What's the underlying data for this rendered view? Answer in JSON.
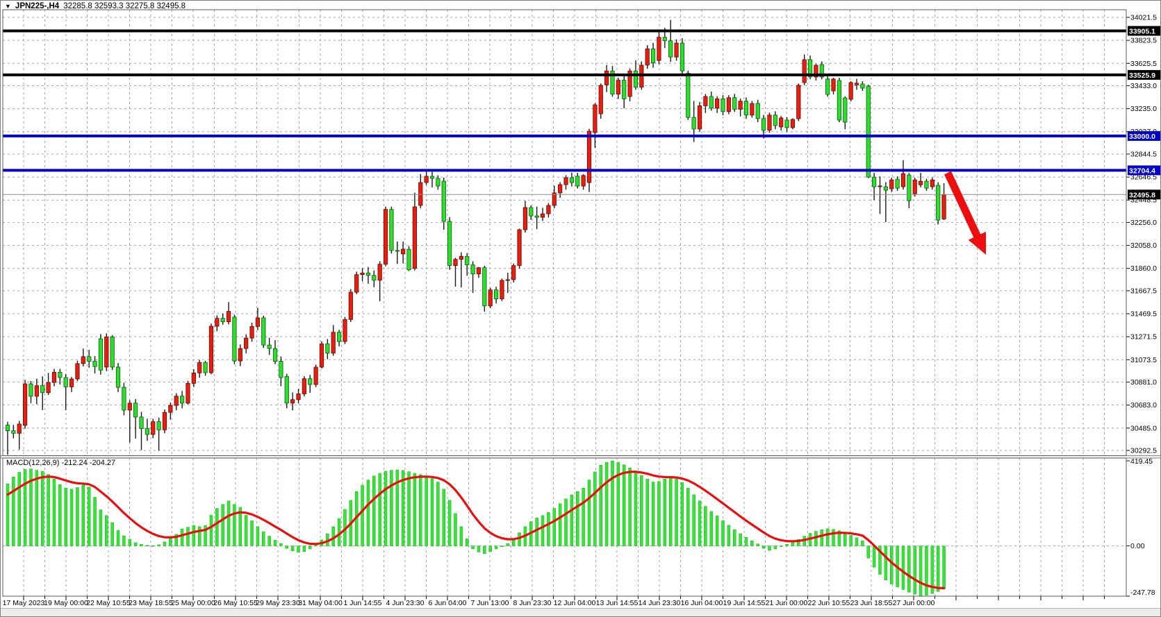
{
  "window": {
    "dropdown_icon": "▼",
    "title_symbol": "JPN225-,H4",
    "title_ohlc": "32285.8 32593.3 32275.8 32495.8"
  },
  "chart_data": {
    "type": "candlestick",
    "symbol": "JPN225-",
    "timeframe": "H4",
    "current_bar": {
      "open": 32285.8,
      "high": 32593.3,
      "low": 32275.8,
      "close": 32495.8
    },
    "price_axis_ticks": [
      34021.5,
      33823.5,
      33625.5,
      33433.0,
      33235.0,
      33037.0,
      32844.5,
      32646.5,
      32448.5,
      32256.0,
      32058.0,
      31860.0,
      31667.5,
      31469.5,
      31271.5,
      31073.5,
      30881.0,
      30683.0,
      30485.0,
      30292.5
    ],
    "time_labels": [
      "17 May 2023",
      "19 May 00:00",
      "22 May 10:55",
      "23 May 18:55",
      "25 May 00:00",
      "26 May 10:55",
      "29 May 23:30",
      "31 May 04:00",
      "1 Jun 14:55",
      "4 Jun 23:30",
      "6 Jun 04:00",
      "7 Jun 13:00",
      "8 Jun 23:30",
      "12 Jun 04:00",
      "13 Jun 14:55",
      "14 Jun 23:30",
      "16 Jun 04:00",
      "19 Jun 14:55",
      "21 Jun 00:00",
      "22 Jun 10:55",
      "23 Jun 18:55",
      "27 Jun 00:00"
    ],
    "hlines": [
      {
        "price": 33905.1,
        "label": "33905.1",
        "color": "#000000",
        "width": 4
      },
      {
        "price": 33525.9,
        "label": "33525.9",
        "color": "#000000",
        "width": 4
      },
      {
        "price": 33000.0,
        "label": "33000.0",
        "color": "#0000cd",
        "width": 4
      },
      {
        "price": 32704.4,
        "label": "32704.4",
        "color": "#0000cd",
        "width": 4
      }
    ],
    "current_price_marker": {
      "price": 32495.8,
      "label": "32495.8"
    },
    "candles": [
      [
        30510,
        30540,
        30255,
        30462
      ],
      [
        30462,
        30512,
        30396,
        30440
      ],
      [
        30440,
        30547,
        30300,
        30520
      ],
      [
        30508,
        30900,
        30480,
        30866
      ],
      [
        30866,
        30890,
        30700,
        30759
      ],
      [
        30759,
        30910,
        30690,
        30850
      ],
      [
        30850,
        30930,
        30640,
        30790
      ],
      [
        30790,
        30960,
        30770,
        30878
      ],
      [
        30878,
        30995,
        30845,
        30966
      ],
      [
        30966,
        30995,
        30860,
        30920
      ],
      [
        30920,
        30950,
        30640,
        30840
      ],
      [
        30840,
        30925,
        30795,
        30908
      ],
      [
        30908,
        31065,
        30890,
        31040
      ],
      [
        31040,
        31170,
        31015,
        31100
      ],
      [
        31100,
        31160,
        31005,
        31060
      ],
      [
        31060,
        31105,
        30955,
        31015
      ],
      [
        31254,
        31295,
        30945,
        30984
      ],
      [
        31010,
        31300,
        30975,
        31270
      ],
      [
        31270,
        31285,
        30985,
        31010
      ],
      [
        31010,
        31045,
        30795,
        30836
      ],
      [
        30836,
        30875,
        30595,
        30640
      ],
      [
        30640,
        30725,
        30360,
        30700
      ],
      [
        30700,
        30735,
        30395,
        30580
      ],
      [
        30580,
        30625,
        30295,
        30480
      ],
      [
        30480,
        30565,
        30375,
        30430
      ],
      [
        30430,
        30565,
        30398,
        30540
      ],
      [
        30540,
        30575,
        30290,
        30470
      ],
      [
        30470,
        30645,
        30440,
        30620
      ],
      [
        30620,
        30705,
        30558,
        30680
      ],
      [
        30680,
        30785,
        30638,
        30760
      ],
      [
        30760,
        30805,
        30655,
        30700
      ],
      [
        30700,
        30892,
        30688,
        30870
      ],
      [
        30870,
        30992,
        30838,
        30960
      ],
      [
        30960,
        31072,
        30918,
        31050
      ],
      [
        31050,
        31065,
        30935,
        30962
      ],
      [
        30962,
        31385,
        30948,
        31362
      ],
      [
        31362,
        31455,
        31318,
        31430
      ],
      [
        31430,
        31472,
        31375,
        31400
      ],
      [
        31400,
        31570,
        31378,
        31490
      ],
      [
        31440,
        31462,
        31035,
        31063
      ],
      [
        31063,
        31205,
        31018,
        31170
      ],
      [
        31170,
        31292,
        31128,
        31260
      ],
      [
        31260,
        31392,
        31228,
        31360
      ],
      [
        31360,
        31520,
        31328,
        31434
      ],
      [
        31434,
        31452,
        31175,
        31200
      ],
      [
        31200,
        31262,
        31115,
        31170
      ],
      [
        31170,
        31242,
        31035,
        31060
      ],
      [
        31060,
        31102,
        30845,
        30920
      ],
      [
        30930,
        30952,
        30655,
        30700
      ],
      [
        30700,
        30792,
        30638,
        30730
      ],
      [
        30730,
        30822,
        30698,
        30780
      ],
      [
        30780,
        30932,
        30758,
        30910
      ],
      [
        30910,
        30942,
        30788,
        30860
      ],
      [
        30860,
        31032,
        30838,
        31010
      ],
      [
        31010,
        31232,
        30998,
        31210
      ],
      [
        31210,
        31252,
        31078,
        31130
      ],
      [
        31130,
        31372,
        31108,
        31310
      ],
      [
        31310,
        31332,
        31188,
        31230
      ],
      [
        31230,
        31442,
        31208,
        31420
      ],
      [
        31420,
        31682,
        31398,
        31655
      ],
      [
        31655,
        31832,
        31638,
        31806
      ],
      [
        31806,
        31862,
        31748,
        31820
      ],
      [
        31820,
        31872,
        31728,
        31800
      ],
      [
        31800,
        31842,
        31698,
        31758
      ],
      [
        31758,
        31922,
        31578,
        31896
      ],
      [
        31896,
        32392,
        31878,
        32368
      ],
      [
        32368,
        32392,
        31988,
        32015
      ],
      [
        32015,
        32092,
        31898,
        32010
      ],
      [
        31985,
        32092,
        31902,
        32025
      ],
      [
        32025,
        32052,
        31838,
        31848
      ],
      [
        31860,
        32512,
        31842,
        32390
      ],
      [
        32402,
        32672,
        32378,
        32599
      ],
      [
        32599,
        32702,
        32578,
        32653
      ],
      [
        32653,
        32692,
        32558,
        32635
      ],
      [
        32635,
        32662,
        32538,
        32569
      ],
      [
        32611,
        32642,
        32193,
        32265
      ],
      [
        32265,
        32302,
        31848,
        31884
      ],
      [
        31884,
        31952,
        31703,
        31938
      ],
      [
        31938,
        31998,
        31697,
        31964
      ],
      [
        31964,
        31992,
        31798,
        31890
      ],
      [
        31890,
        31922,
        31648,
        31812
      ],
      [
        31812,
        31872,
        31778,
        31866
      ],
      [
        31866,
        31882,
        31488,
        31537
      ],
      [
        31537,
        31692,
        31518,
        31675
      ],
      [
        31675,
        31702,
        31558,
        31597
      ],
      [
        31597,
        31772,
        31578,
        31757
      ],
      [
        31757,
        31822,
        31648,
        31763
      ],
      [
        31763,
        31902,
        31738,
        31884
      ],
      [
        31884,
        32202,
        31858,
        32193
      ],
      [
        32193,
        32442,
        32168,
        32384
      ],
      [
        32384,
        32402,
        32278,
        32312
      ],
      [
        32312,
        32392,
        32198,
        32300
      ],
      [
        32300,
        32382,
        32268,
        32330
      ],
      [
        32330,
        32422,
        32298,
        32402
      ],
      [
        32402,
        32572,
        32378,
        32510
      ],
      [
        32510,
        32602,
        32468,
        32581
      ],
      [
        32581,
        32662,
        32538,
        32641
      ],
      [
        32641,
        32685,
        32565,
        32599
      ],
      [
        32653,
        32682,
        32548,
        32569
      ],
      [
        32569,
        32672,
        32538,
        32660
      ],
      [
        32599,
        33062,
        32518,
        33041
      ],
      [
        33030,
        33282,
        32898,
        33268
      ],
      [
        33191,
        33452,
        33148,
        33436
      ],
      [
        33440,
        33612,
        33378,
        33560
      ],
      [
        33560,
        33602,
        33338,
        33360
      ],
      [
        33360,
        33502,
        33318,
        33480
      ],
      [
        33480,
        33522,
        33238,
        33320
      ],
      [
        33340,
        33582,
        33298,
        33560
      ],
      [
        33560,
        33652,
        33398,
        33420
      ],
      [
        33420,
        33642,
        33398,
        33610
      ],
      [
        33610,
        33782,
        33578,
        33750
      ],
      [
        33750,
        33802,
        33588,
        33630
      ],
      [
        33650,
        33908,
        33618,
        33850
      ],
      [
        33850,
        33932,
        33758,
        33820
      ],
      [
        33820,
        34000,
        33638,
        33680
      ],
      [
        33680,
        33832,
        33648,
        33800
      ],
      [
        33800,
        33842,
        33538,
        33560
      ],
      [
        33540,
        33562,
        33138,
        33160
      ],
      [
        33160,
        33302,
        32948,
        33060
      ],
      [
        33060,
        33292,
        33038,
        33260
      ],
      [
        33260,
        33362,
        33198,
        33340
      ],
      [
        33340,
        33382,
        33218,
        33240
      ],
      [
        33240,
        33342,
        33198,
        33320
      ],
      [
        33320,
        33352,
        33178,
        33210
      ],
      [
        33210,
        33352,
        33188,
        33330
      ],
      [
        33330,
        33362,
        33208,
        33230
      ],
      [
        33230,
        33322,
        33168,
        33300
      ],
      [
        33300,
        33332,
        33148,
        33180
      ],
      [
        33180,
        33302,
        33158,
        33280
      ],
      [
        33280,
        33312,
        33118,
        33150
      ],
      [
        33150,
        33182,
        32978,
        33050
      ],
      [
        33050,
        33202,
        33028,
        33180
      ],
      [
        33180,
        33212,
        33058,
        33090
      ],
      [
        33078,
        33172,
        33048,
        33155
      ],
      [
        33137,
        33162,
        33038,
        33072
      ],
      [
        33072,
        33152,
        33058,
        33143
      ],
      [
        33149,
        33452,
        33128,
        33436
      ],
      [
        33460,
        33702,
        33438,
        33657
      ],
      [
        33657,
        33692,
        33488,
        33508
      ],
      [
        33508,
        33622,
        33478,
        33609
      ],
      [
        33615,
        33642,
        33488,
        33508
      ],
      [
        33490,
        33522,
        33338,
        33358
      ],
      [
        33388,
        33502,
        33358,
        33490
      ],
      [
        33478,
        33502,
        33118,
        33137
      ],
      [
        33328,
        33342,
        33058,
        33119
      ],
      [
        33316,
        33472,
        33298,
        33460
      ],
      [
        33440,
        33492,
        33398,
        33455
      ],
      [
        33448,
        33472,
        33388,
        33412
      ],
      [
        33430,
        33442,
        32638,
        32646
      ],
      [
        32646,
        32682,
        32448,
        32563
      ],
      [
        32563,
        32652,
        32328,
        32570
      ],
      [
        32563,
        32602,
        32258,
        32534
      ],
      [
        32545,
        32642,
        32518,
        32622
      ],
      [
        32628,
        32652,
        32528,
        32551
      ],
      [
        32563,
        32792,
        32538,
        32676
      ],
      [
        32664,
        32682,
        32378,
        32443
      ],
      [
        32503,
        32642,
        32478,
        32622
      ],
      [
        32580,
        32682,
        32558,
        32610
      ],
      [
        32610,
        32632,
        32528,
        32551
      ],
      [
        32563,
        32642,
        32538,
        32622
      ],
      [
        32575,
        32602,
        32238,
        32276
      ],
      [
        32285.8,
        32593.3,
        32275.8,
        32495.8
      ]
    ],
    "indicator": {
      "label": "MACD(12,26,9) -212.24 -204.27",
      "name": "MACD",
      "params": [
        12,
        26,
        9
      ],
      "main_value": -212.24,
      "signal_value": -204.27,
      "signal_start": 240,
      "axis_ticks": [
        419.45,
        0.0,
        -247.78
      ],
      "histogram": [
        306,
        340,
        363,
        377,
        380,
        373,
        368,
        353,
        330,
        302,
        285,
        280,
        288,
        300,
        290,
        240,
        178,
        150,
        115,
        77,
        50,
        33,
        16,
        8,
        3,
        1,
        6,
        20,
        38,
        57,
        84,
        92,
        101,
        95,
        101,
        151,
        185,
        205,
        222,
        205,
        190,
        151,
        124,
        95,
        70,
        48,
        28,
        12,
        -12,
        -25,
        -32,
        -28,
        -15,
        5,
        30,
        60,
        95,
        135,
        180,
        225,
        268,
        300,
        325,
        345,
        358,
        368,
        373,
        375,
        372,
        366,
        358,
        352,
        345,
        332,
        315,
        280,
        225,
        160,
        95,
        35,
        -15,
        -30,
        -38,
        -28,
        -15,
        -4,
        12,
        35,
        65,
        95,
        120,
        138,
        150,
        165,
        185,
        208,
        232,
        252,
        268,
        285,
        325,
        365,
        398,
        412,
        419.45,
        412,
        400,
        385,
        368,
        348,
        330,
        315,
        318,
        330,
        338,
        330,
        312,
        285,
        252,
        222,
        195,
        170,
        148,
        125,
        102,
        80,
        60,
        42,
        25,
        10,
        -12,
        -22,
        -15,
        -3,
        8,
        18,
        32,
        48,
        62,
        72,
        80,
        85,
        82,
        75,
        62,
        52,
        40,
        25,
        -60,
        -105,
        -140,
        -168,
        -188,
        -202,
        -215,
        -228,
        -238,
        -247.78,
        -243,
        -235,
        -225,
        -212.24
      ]
    },
    "annotation_arrow": {
      "from": [
        1363,
        248
      ],
      "to": [
        1418,
        366
      ]
    }
  },
  "colors": {
    "bull": "#ed1c0e",
    "bull_border": "#5a1000",
    "bear": "#2cdf2c",
    "bear_border": "#0c5a0c",
    "wick": "#1a1a1a",
    "grid": "#9aa4b6",
    "macd_bar": "#35e535",
    "macd_bar_border": "#16b316",
    "signal_line": "#ee0d0d",
    "arrow": "#ed0e0e",
    "badge_black": "#000000",
    "badge_blue": "#0000cd",
    "badge_text": "#ffffff",
    "axis_text": "#000000",
    "current_price_line": "#8a8a8a",
    "background": "#ffffff",
    "panel_border": "#5a5a5a"
  }
}
